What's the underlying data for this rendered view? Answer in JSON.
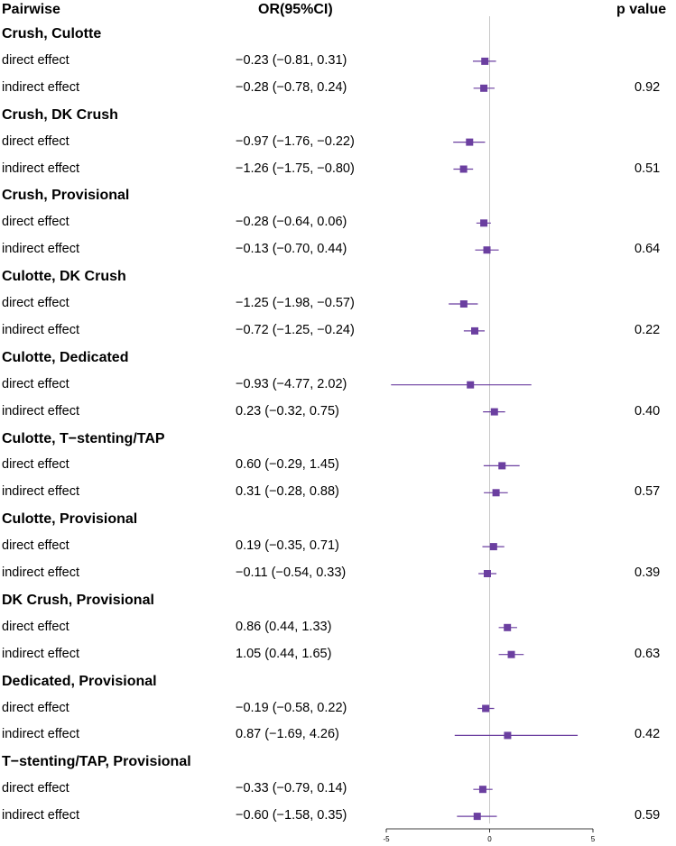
{
  "headers": {
    "pairwise": "Pairwise",
    "or_ci": "OR(95%CI)",
    "p_value": "p value"
  },
  "chart_data": {
    "type": "forest",
    "xlim": [
      -5,
      5
    ],
    "xticks": [
      -5,
      0,
      5
    ],
    "reference_line": 0,
    "marker_color": "#6b3fa0",
    "line_color": "#6b3fa0",
    "groups": [
      {
        "name": "Crush, Culotte",
        "p_value": "0.92",
        "rows": [
          {
            "label": "direct effect",
            "est": -0.23,
            "lo": -0.81,
            "hi": 0.31,
            "text": "−0.23 (−0.81, 0.31)"
          },
          {
            "label": "indirect effect",
            "est": -0.28,
            "lo": -0.78,
            "hi": 0.24,
            "text": "−0.28 (−0.78, 0.24)"
          }
        ]
      },
      {
        "name": "Crush, DK Crush",
        "p_value": "0.51",
        "rows": [
          {
            "label": "direct effect",
            "est": -0.97,
            "lo": -1.76,
            "hi": -0.22,
            "text": "−0.97 (−1.76, −0.22)"
          },
          {
            "label": "indirect effect",
            "est": -1.26,
            "lo": -1.75,
            "hi": -0.8,
            "text": "−1.26 (−1.75, −0.80)"
          }
        ]
      },
      {
        "name": "Crush, Provisional",
        "p_value": "0.64",
        "rows": [
          {
            "label": "direct effect",
            "est": -0.28,
            "lo": -0.64,
            "hi": 0.06,
            "text": "−0.28 (−0.64, 0.06)"
          },
          {
            "label": "indirect effect",
            "est": -0.13,
            "lo": -0.7,
            "hi": 0.44,
            "text": "−0.13 (−0.70, 0.44)"
          }
        ]
      },
      {
        "name": "Culotte, DK Crush",
        "p_value": "0.22",
        "rows": [
          {
            "label": "direct effect",
            "est": -1.25,
            "lo": -1.98,
            "hi": -0.57,
            "text": "−1.25 (−1.98, −0.57)"
          },
          {
            "label": "indirect effect",
            "est": -0.72,
            "lo": -1.25,
            "hi": -0.24,
            "text": "−0.72 (−1.25, −0.24)"
          }
        ]
      },
      {
        "name": "Culotte, Dedicated",
        "p_value": "0.40",
        "rows": [
          {
            "label": "direct effect",
            "est": -0.93,
            "lo": -4.77,
            "hi": 2.02,
            "text": "−0.93 (−4.77, 2.02)"
          },
          {
            "label": "indirect effect",
            "est": 0.23,
            "lo": -0.32,
            "hi": 0.75,
            "text": "0.23 (−0.32, 0.75)"
          }
        ]
      },
      {
        "name": "Culotte, T−stenting/TAP",
        "p_value": "0.57",
        "rows": [
          {
            "label": "direct effect",
            "est": 0.6,
            "lo": -0.29,
            "hi": 1.45,
            "text": "0.60 (−0.29, 1.45)"
          },
          {
            "label": "indirect effect",
            "est": 0.31,
            "lo": -0.28,
            "hi": 0.88,
            "text": "0.31 (−0.28, 0.88)"
          }
        ]
      },
      {
        "name": "Culotte, Provisional",
        "p_value": "0.39",
        "rows": [
          {
            "label": "direct effect",
            "est": 0.19,
            "lo": -0.35,
            "hi": 0.71,
            "text": "0.19 (−0.35, 0.71)"
          },
          {
            "label": "indirect effect",
            "est": -0.11,
            "lo": -0.54,
            "hi": 0.33,
            "text": "−0.11 (−0.54, 0.33)"
          }
        ]
      },
      {
        "name": "DK Crush, Provisional",
        "p_value": "0.63",
        "rows": [
          {
            "label": "direct effect",
            "est": 0.86,
            "lo": 0.44,
            "hi": 1.33,
            "text": "0.86 (0.44, 1.33)"
          },
          {
            "label": "indirect effect",
            "est": 1.05,
            "lo": 0.44,
            "hi": 1.65,
            "text": "1.05 (0.44, 1.65)"
          }
        ]
      },
      {
        "name": "Dedicated, Provisional",
        "p_value": "0.42",
        "rows": [
          {
            "label": "direct effect",
            "est": -0.19,
            "lo": -0.58,
            "hi": 0.22,
            "text": "−0.19 (−0.58, 0.22)"
          },
          {
            "label": "indirect effect",
            "est": 0.87,
            "lo": -1.69,
            "hi": 4.26,
            "text": "0.87 (−1.69, 4.26)"
          }
        ]
      },
      {
        "name": "T−stenting/TAP, Provisional",
        "p_value": "0.59",
        "rows": [
          {
            "label": "direct effect",
            "est": -0.33,
            "lo": -0.79,
            "hi": 0.14,
            "text": "−0.33 (−0.79, 0.14)"
          },
          {
            "label": "indirect effect",
            "est": -0.6,
            "lo": -1.58,
            "hi": 0.35,
            "text": "−0.60 (−1.58, 0.35)"
          }
        ]
      }
    ]
  }
}
